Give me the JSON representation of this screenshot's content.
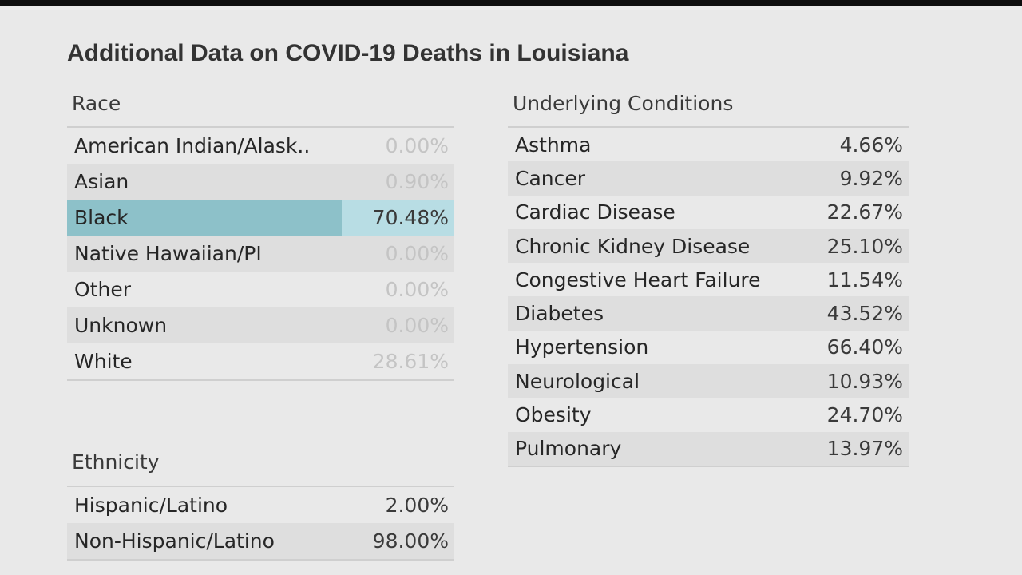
{
  "title": "Additional Data on COVID-19 Deaths in Louisiana",
  "race": {
    "label": "Race",
    "rows": [
      {
        "label": "American Indian/Alask..",
        "value": "0.00%"
      },
      {
        "label": "Asian",
        "value": "0.90%"
      },
      {
        "label": "Black",
        "value": "70.48%"
      },
      {
        "label": "Native Hawaiian/PI",
        "value": "0.00%"
      },
      {
        "label": "Other",
        "value": "0.00%"
      },
      {
        "label": "Unknown",
        "value": "0.00%"
      },
      {
        "label": "White",
        "value": "28.61%"
      }
    ]
  },
  "ethnicity": {
    "label": "Ethnicity",
    "rows": [
      {
        "label": "Hispanic/Latino",
        "value": "2.00%"
      },
      {
        "label": "Non-Hispanic/Latino",
        "value": "98.00%"
      }
    ]
  },
  "conditions": {
    "label": "Underlying Conditions",
    "rows": [
      {
        "label": "Asthma",
        "value": "4.66%"
      },
      {
        "label": "Cancer",
        "value": "9.92%"
      },
      {
        "label": "Cardiac Disease",
        "value": "22.67%"
      },
      {
        "label": "Chronic Kidney Disease",
        "value": "25.10%"
      },
      {
        "label": "Congestive Heart Failure",
        "value": "11.54%"
      },
      {
        "label": "Diabetes",
        "value": "43.52%"
      },
      {
        "label": "Hypertension",
        "value": "66.40%"
      },
      {
        "label": "Neurological",
        "value": "10.93%"
      },
      {
        "label": "Obesity",
        "value": "24.70%"
      },
      {
        "label": "Pulmonary",
        "value": "13.97%"
      }
    ]
  },
  "colors": {
    "highlight_bar": "#8dc1c9",
    "highlight_row": "#b8dde4",
    "faded_text": "#c4c4c4"
  }
}
